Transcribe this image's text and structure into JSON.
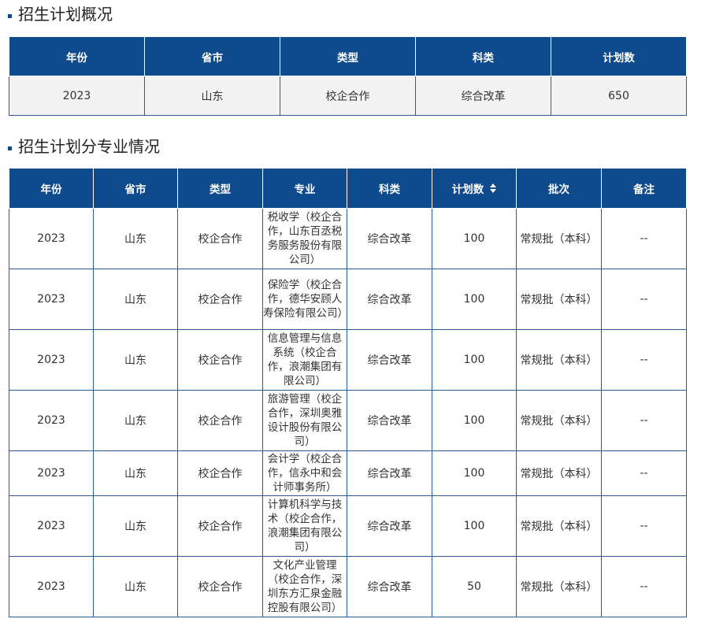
{
  "overview": {
    "title": "招生计划概况",
    "headers": [
      "年份",
      "省市",
      "类型",
      "科类",
      "计划数"
    ],
    "rows": [
      [
        "2023",
        "山东",
        "校企合作",
        "综合改革",
        "650"
      ]
    ]
  },
  "majors": {
    "title": "招生计划分专业情况",
    "headers": [
      "年份",
      "省市",
      "类型",
      "专业",
      "科类",
      "计划数",
      "批次",
      "备注"
    ],
    "sort_icon": "sort-icon",
    "rows": [
      [
        "2023",
        "山东",
        "校企合作",
        "税收学（校企合作，山东百丞税务服务股份有限公司）",
        "综合改革",
        "100",
        "常规批（本科）",
        "--"
      ],
      [
        "2023",
        "山东",
        "校企合作",
        "保险学（校企合作，德华安顾人寿保险有限公司）",
        "综合改革",
        "100",
        "常规批（本科）",
        "--"
      ],
      [
        "2023",
        "山东",
        "校企合作",
        "信息管理与信息系统（校企合作，浪潮集团有限公司）",
        "综合改革",
        "100",
        "常规批（本科）",
        "--"
      ],
      [
        "2023",
        "山东",
        "校企合作",
        "旅游管理（校企合作，深圳奥雅设计股份有限公司）",
        "综合改革",
        "100",
        "常规批（本科）",
        "--"
      ],
      [
        "2023",
        "山东",
        "校企合作",
        "会计学（校企合作，信永中和会计师事务所）",
        "综合改革",
        "100",
        "常规批（本科）",
        "--"
      ],
      [
        "2023",
        "山东",
        "校企合作",
        "计算机科学与技术（校企合作，浪潮集团有限公司）",
        "综合改革",
        "100",
        "常规批（本科）",
        "--"
      ],
      [
        "2023",
        "山东",
        "校企合作",
        "文化产业管理（校企合作，深圳东方汇泉金融控股有限公司）",
        "综合改革",
        "50",
        "常规批（本科）",
        "--"
      ]
    ]
  },
  "colors": {
    "header_bg": "#0e4a8c",
    "header_text": "#ffffff",
    "border": "#2a5c9a",
    "overview_row_bg": "#f3f3f3"
  }
}
